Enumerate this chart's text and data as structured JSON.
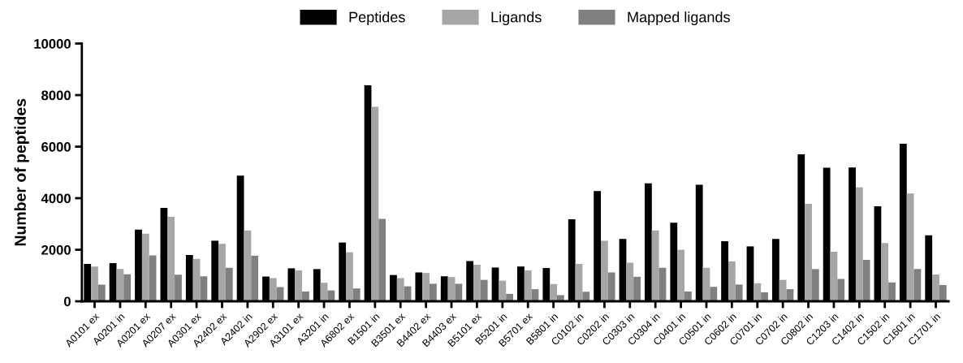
{
  "chart_data": {
    "type": "bar",
    "ylabel": "Number of peptides",
    "legend": "top",
    "grid": false,
    "ylim": [
      0,
      10000
    ],
    "yticks": [
      0,
      2000,
      4000,
      6000,
      8000,
      10000
    ],
    "categories": [
      "A0101 ex",
      "A0201 in",
      "A0201 ex",
      "A0207 ex",
      "A0301 ex",
      "A2402 ex",
      "A2402 in",
      "A2902 ex",
      "A3101 ex",
      "A3201 in",
      "A6802 ex",
      "B1501 in",
      "B3501 ex",
      "B4402 ex",
      "B4403 ex",
      "B5101 ex",
      "B5201 in",
      "B5701 ex",
      "B5801 in",
      "C0102 in",
      "C0202 in",
      "C0303 in",
      "C0304 in",
      "C0401 in",
      "C0501 in",
      "C0602 in",
      "C0701 in",
      "C0702 in",
      "C0802 in",
      "C1203 in",
      "C1402 in",
      "C1502 in",
      "C1601 in",
      "C1701 in"
    ],
    "series": [
      {
        "name": "Peptides",
        "color": "#000000",
        "values": [
          1450,
          1480,
          2780,
          3620,
          1800,
          2350,
          4880,
          960,
          1280,
          1250,
          2280,
          8380,
          1020,
          1120,
          970,
          1560,
          1310,
          1350,
          1290,
          3180,
          4280,
          2420,
          4580,
          3050,
          4520,
          2330,
          2130,
          2420,
          5700,
          5180,
          5190,
          3690,
          6110,
          2560
        ]
      },
      {
        "name": "Ligands",
        "color": "#a6a6a8",
        "values": [
          1350,
          1250,
          2620,
          3280,
          1650,
          2230,
          2750,
          900,
          1200,
          720,
          1900,
          7550,
          900,
          1100,
          940,
          1420,
          800,
          1200,
          670,
          1450,
          2350,
          1500,
          2750,
          2000,
          1300,
          1550,
          700,
          830,
          3780,
          1920,
          4420,
          2260,
          4180,
          1040
        ]
      },
      {
        "name": "Mapped ligands",
        "color": "#808080",
        "values": [
          650,
          1050,
          1780,
          1030,
          970,
          1300,
          1770,
          550,
          380,
          420,
          500,
          3200,
          580,
          680,
          680,
          830,
          290,
          470,
          240,
          370,
          1120,
          950,
          1300,
          380,
          560,
          650,
          350,
          470,
          1250,
          870,
          1610,
          730,
          1250,
          630
        ]
      }
    ]
  }
}
